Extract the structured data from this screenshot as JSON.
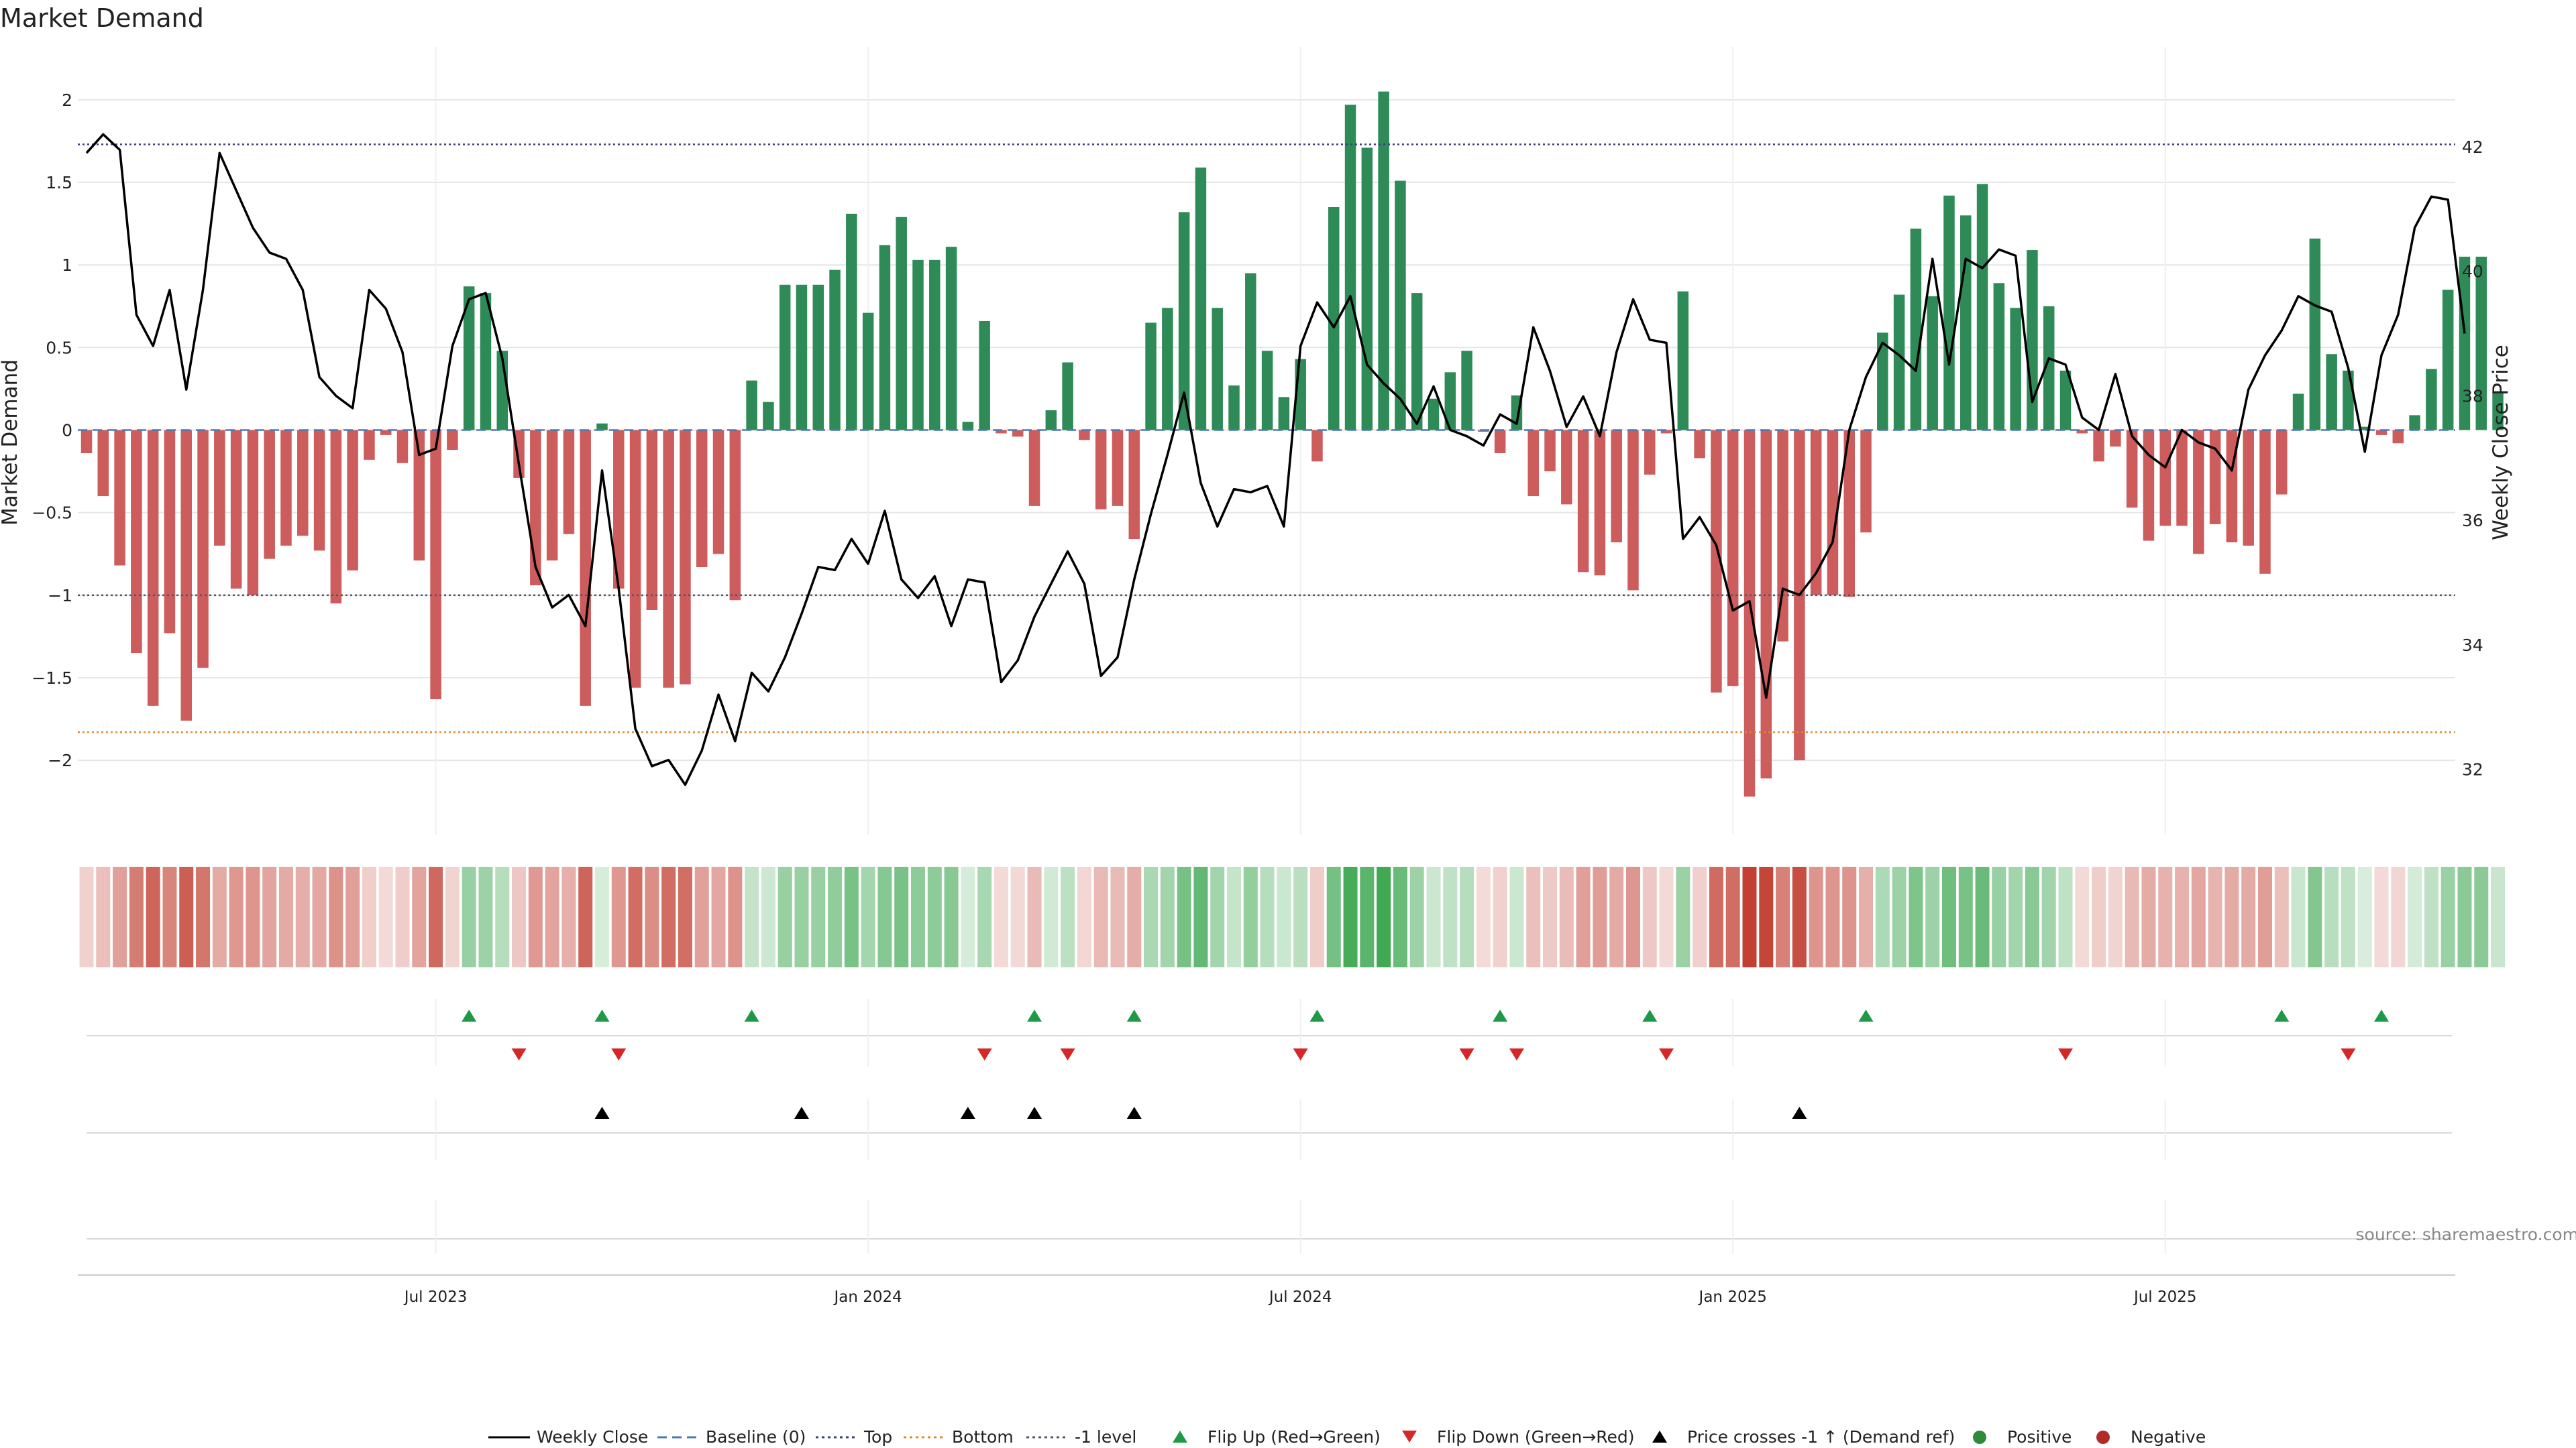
{
  "chart_data": {
    "type": "bar",
    "title": "Market Demand",
    "ylabel_left": "Market Demand",
    "ylabel_right": "Weekly Close Price",
    "source": "source: sharemaestro.com",
    "ylim_left": [
      -2.45,
      2.3
    ],
    "ylim_right": [
      30.95,
      43.55
    ],
    "yticks_left": [
      {
        "v": 2,
        "label": "2"
      },
      {
        "v": 1.5,
        "label": "1.5"
      },
      {
        "v": 1,
        "label": "1"
      },
      {
        "v": 0.5,
        "label": "0.5"
      },
      {
        "v": 0,
        "label": "0"
      },
      {
        "v": -0.5,
        "label": "−0.5"
      },
      {
        "v": -1,
        "label": "−1"
      },
      {
        "v": -1.5,
        "label": "−1.5"
      },
      {
        "v": -2,
        "label": "−2"
      }
    ],
    "yticks_right": [
      {
        "v": 42,
        "label": "42"
      },
      {
        "v": 40,
        "label": "40"
      },
      {
        "v": 38,
        "label": "38"
      },
      {
        "v": 36,
        "label": "36"
      },
      {
        "v": 34,
        "label": "34"
      },
      {
        "v": 32,
        "label": "32"
      }
    ],
    "x_range_weeks": [
      0,
      143
    ],
    "x_ticks": [
      {
        "week": 21,
        "label": "Jul 2023"
      },
      {
        "week": 47,
        "label": "Jan 2024"
      },
      {
        "week": 73,
        "label": "Jul 2024"
      },
      {
        "week": 99,
        "label": "Jan 2025"
      },
      {
        "week": 125,
        "label": "Jul 2025"
      }
    ],
    "reference_lines": [
      {
        "name": "Top",
        "value": 1.73,
        "color": "#3a3f7a",
        "dash": "3,4"
      },
      {
        "name": "Bottom",
        "value": -1.83,
        "color": "#e08a2b",
        "dash": "3,4"
      },
      {
        "name": "-1 level",
        "value": -1,
        "color": "#555566",
        "dash": "3,4"
      },
      {
        "name": "Baseline (0)",
        "value": 0,
        "color": "#4a7ab5",
        "dash": "14,8"
      }
    ],
    "colors": {
      "positive": "#2e8b57",
      "negative": "#cd5c5c",
      "price": "#000000",
      "flip_up": "#1e9a46",
      "flip_down": "#d62728",
      "cross": "#000000",
      "grid": "#e6e6e6"
    },
    "demand": [
      -0.14,
      -0.4,
      -0.82,
      -1.35,
      -1.67,
      -1.23,
      -1.76,
      -1.44,
      -0.7,
      -0.96,
      -1,
      -0.78,
      -0.7,
      -0.64,
      -0.73,
      -1.05,
      -0.85,
      -0.18,
      -0.03,
      -0.2,
      -0.79,
      -1.63,
      -0.12,
      0.87,
      0.83,
      0.48,
      -0.29,
      -0.94,
      -0.79,
      -0.63,
      -1.67,
      0.04,
      -0.96,
      -1.56,
      -1.09,
      -1.56,
      -1.54,
      -0.83,
      -0.75,
      -1.03,
      0.3,
      0.17,
      0.88,
      0.88,
      0.88,
      0.97,
      1.31,
      0.71,
      1.12,
      1.29,
      1.03,
      1.03,
      1.11,
      0.05,
      0.66,
      -0.02,
      -0.04,
      -0.46,
      0.12,
      0.41,
      -0.06,
      -0.48,
      -0.46,
      -0.66,
      0.65,
      0.74,
      1.32,
      1.59,
      0.74,
      0.27,
      0.95,
      0.48,
      0.2,
      0.43,
      -0.19,
      1.35,
      1.97,
      1.71,
      2.05,
      1.51,
      0.83,
      0.19,
      0.35,
      0.48,
      -0.01,
      -0.14,
      0.21,
      -0.4,
      -0.25,
      -0.45,
      -0.86,
      -0.88,
      -0.68,
      -0.97,
      -0.27,
      -0.02,
      0.84,
      -0.17,
      -1.59,
      -1.55,
      -2.22,
      -2.11,
      -1.28,
      -2,
      -1,
      -1,
      -1.01,
      -0.62,
      0.59,
      0.82,
      1.22,
      0.81,
      1.42,
      1.3,
      1.49,
      0.89,
      0.74,
      1.09,
      0.75,
      0.36,
      -0.02,
      -0.19,
      -0.1,
      -0.47,
      -0.67,
      -0.58,
      -0.58,
      -0.75,
      -0.57,
      -0.68,
      -0.7,
      -0.87,
      -0.39,
      0.22,
      1.16,
      0.46,
      0.36,
      0.02,
      -0.03,
      -0.08,
      0.09,
      0.37,
      0.85,
      1.05,
      1.05,
      0.23
    ],
    "price": [
      41.9,
      42.2,
      41.95,
      39.3,
      38.8,
      39.7,
      38.1,
      39.7,
      41.9,
      41.3,
      40.7,
      40.3,
      40.2,
      39.7,
      38.3,
      38,
      37.8,
      39.7,
      39.4,
      38.7,
      37.05,
      37.15,
      38.8,
      39.55,
      39.65,
      38.6,
      36.9,
      35.25,
      34.6,
      34.8,
      34.3,
      36.8,
      34.9,
      32.65,
      32.05,
      32.15,
      31.75,
      32.3,
      33.2,
      32.45,
      33.55,
      33.25,
      33.8,
      34.5,
      35.25,
      35.2,
      35.7,
      35.3,
      36.15,
      35.05,
      34.75,
      35.1,
      34.3,
      35.05,
      35,
      33.4,
      33.75,
      34.45,
      34.98,
      35.5,
      34.98,
      33.5,
      33.8,
      35.05,
      36.1,
      37.05,
      38.05,
      36.6,
      35.9,
      36.5,
      36.45,
      36.55,
      35.9,
      38.8,
      39.5,
      39.1,
      39.6,
      38.5,
      38.2,
      37.95,
      37.55,
      38.15,
      37.45,
      37.35,
      37.2,
      37.7,
      37.55,
      39.1,
      38.4,
      37.5,
      37.99,
      37.35,
      38.7,
      39.55,
      38.9,
      38.85,
      35.7,
      36.05,
      35.6,
      34.55,
      34.7,
      33.15,
      34.9,
      34.8,
      35.15,
      35.65,
      37.45,
      38.3,
      38.85,
      38.65,
      38.4,
      40.2,
      38.5,
      40.2,
      40.05,
      40.35,
      40.25,
      37.9,
      38.6,
      38.5,
      37.65,
      37.45,
      38.35,
      37.35,
      37.05,
      36.85,
      37.45,
      37.25,
      37.15,
      36.8,
      38.1,
      38.65,
      39.05,
      39.6,
      39.45,
      39.35,
      38.45,
      37.1,
      38.65,
      39.3,
      40.7,
      41.2,
      41.15,
      39
    ],
    "signals": {
      "flip_up_weeks": [
        23,
        31,
        40,
        57,
        63,
        74,
        85,
        94,
        107,
        132,
        138
      ],
      "flip_down_weeks": [
        26,
        32,
        54,
        59,
        73,
        83,
        86,
        95,
        119,
        136
      ],
      "price_cross_weeks": [
        31,
        43,
        53,
        57,
        63,
        103
      ]
    },
    "legend": [
      {
        "key": "close",
        "label": "Weekly Close"
      },
      {
        "key": "baseline",
        "label": "Baseline (0)"
      },
      {
        "key": "top",
        "label": "Top"
      },
      {
        "key": "bottom",
        "label": "Bottom"
      },
      {
        "key": "minus1",
        "label": "-1 level"
      },
      {
        "key": "flipup",
        "label": "Flip Up (Red→Green)"
      },
      {
        "key": "flipdown",
        "label": "Flip Down (Green→Red)"
      },
      {
        "key": "cross",
        "label": "Price crosses -1 ↑ (Demand ref)"
      },
      {
        "key": "positive",
        "label": "Positive"
      },
      {
        "key": "negative",
        "label": "Negative"
      }
    ]
  }
}
